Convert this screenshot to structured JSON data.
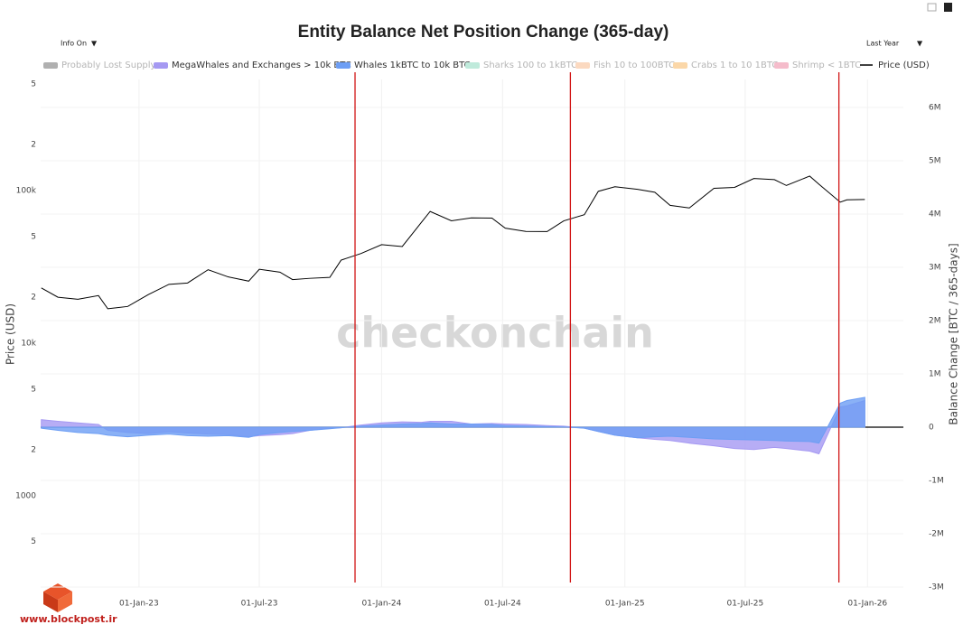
{
  "chart_data": {
    "type": "line",
    "title": "Entity Balance Net Position Change (365-day)",
    "y_label": "Price (USD)",
    "y2_label": "Balance Change [BTC / 365-days]",
    "x": [
      "2022-08-07",
      "2022-09-01",
      "2022-10-01",
      "2022-11-01",
      "2022-11-15",
      "2022-12-15",
      "2023-01-15",
      "2023-02-15",
      "2023-03-15",
      "2023-04-15",
      "2023-05-15",
      "2023-06-15",
      "2023-07-01",
      "2023-08-01",
      "2023-08-20",
      "2023-09-15",
      "2023-10-15",
      "2023-11-01",
      "2023-12-01",
      "2024-01-01",
      "2024-02-01",
      "2024-03-01",
      "2024-03-14",
      "2024-04-15",
      "2024-05-15",
      "2024-06-15",
      "2024-07-05",
      "2024-08-05",
      "2024-09-06",
      "2024-10-01",
      "2024-11-01",
      "2024-11-22",
      "2024-12-17",
      "2025-01-20",
      "2025-02-15",
      "2025-03-10",
      "2025-04-08",
      "2025-05-15",
      "2025-06-15",
      "2025-07-14",
      "2025-08-14",
      "2025-09-01",
      "2025-10-06",
      "2025-10-20",
      "2025-11-21",
      "2025-12-01",
      "2025-12-28"
    ],
    "series": [
      {
        "name": "Probably Lost Supply",
        "color": "#b0b0b0",
        "visible": false
      },
      {
        "name": "MegaWhales and Exchanges > 10k BTC",
        "color": "#a599f2",
        "axis": "y2",
        "style": "area",
        "values": [
          140000,
          110000,
          80000,
          50000,
          -60000,
          -100000,
          -120000,
          -90000,
          -110000,
          -130000,
          -140000,
          -180000,
          -160000,
          -140000,
          -120000,
          -60000,
          -20000,
          -10000,
          40000,
          80000,
          100000,
          90000,
          110000,
          110000,
          60000,
          70000,
          60000,
          50000,
          30000,
          20000,
          -20000,
          -80000,
          -150000,
          -200000,
          -230000,
          -250000,
          -300000,
          -350000,
          -400000,
          -420000,
          -380000,
          -400000,
          -450000,
          -500000,
          380000,
          400000,
          500000
        ]
      },
      {
        "name": "Whales 1kBTC to 10k BTC",
        "color": "#6d9ef4",
        "axis": "y2",
        "style": "area",
        "values": [
          -20000,
          -60000,
          -100000,
          -120000,
          -150000,
          -180000,
          -150000,
          -130000,
          -160000,
          -170000,
          -160000,
          -190000,
          -140000,
          -100000,
          -80000,
          -60000,
          -30000,
          -10000,
          20000,
          40000,
          60000,
          70000,
          80000,
          60000,
          60000,
          50000,
          30000,
          20000,
          10000,
          5000,
          -20000,
          -80000,
          -150000,
          -200000,
          -180000,
          -170000,
          -190000,
          -220000,
          -230000,
          -240000,
          -250000,
          -260000,
          -270000,
          -300000,
          450000,
          500000,
          560000
        ]
      },
      {
        "name": "Sharks 100 to 1kBTC",
        "color": "#bfeadb",
        "visible": false
      },
      {
        "name": "Fish 10 to 100BTC",
        "color": "#fbd9c0",
        "visible": false
      },
      {
        "name": "Crabs 1 to 10 1BTC",
        "color": "#fbd7a8",
        "visible": false
      },
      {
        "name": "Shrimp < 1BTC",
        "color": "#f5bccb",
        "visible": false
      },
      {
        "name": "Price (USD)",
        "color": "#000000",
        "axis": "y",
        "style": "line",
        "values": [
          23000,
          20000,
          19400,
          20500,
          16800,
          17400,
          20800,
          24300,
          24800,
          30300,
          27200,
          25500,
          30500,
          29200,
          26100,
          26600,
          27000,
          35000,
          38700,
          44200,
          43000,
          62000,
          73000,
          63400,
          66200,
          66000,
          56700,
          54000,
          53900,
          63300,
          69500,
          98900,
          106000,
          102000,
          97500,
          80000,
          77000,
          103500,
          105000,
          120000,
          118000,
          108000,
          124500,
          110000,
          84000,
          87000,
          87500
        ]
      }
    ],
    "xlim": [
      "2022-08-06",
      "2026-02-24"
    ],
    "xticks": [
      {
        "value": "2023-01-01",
        "label": "01-Jan-23"
      },
      {
        "value": "2023-07-01",
        "label": "01-Jul-23"
      },
      {
        "value": "2024-01-01",
        "label": "01-Jan-24"
      },
      {
        "value": "2024-07-01",
        "label": "01-Jul-24"
      },
      {
        "value": "2025-01-01",
        "label": "01-Jan-25"
      },
      {
        "value": "2025-07-01",
        "label": "01-Jul-25"
      },
      {
        "value": "2026-01-01",
        "label": "01-Jan-26"
      }
    ],
    "yscale": "log",
    "ylim": [
      252,
      535000
    ],
    "yticks": [
      {
        "value": 500,
        "label": "5"
      },
      1000,
      {
        "value": 2000,
        "label": "2"
      },
      {
        "value": 5000,
        "label": "5"
      },
      {
        "value": 10000,
        "label": "10k"
      },
      {
        "value": 20000,
        "label": "2"
      },
      {
        "value": 50000,
        "label": "5"
      },
      {
        "value": 100000,
        "label": "100k"
      },
      {
        "value": 200000,
        "label": "2"
      },
      {
        "value": 500000,
        "label": "5"
      }
    ],
    "y2lim": [
      -3000000,
      6525000
    ],
    "y2ticks": [
      {
        "value": -3000000,
        "label": "-3M"
      },
      {
        "value": -2000000,
        "label": "-2M"
      },
      {
        "value": -1000000,
        "label": "-1M"
      },
      0,
      {
        "value": 1000000,
        "label": "1M"
      },
      {
        "value": 2000000,
        "label": "2M"
      },
      {
        "value": 3000000,
        "label": "3M"
      },
      {
        "value": 4000000,
        "label": "4M"
      },
      {
        "value": 5000000,
        "label": "5M"
      },
      {
        "value": 6000000,
        "label": "6M"
      }
    ],
    "vlines": [
      "2023-11-22",
      "2024-10-11",
      "2025-11-19"
    ],
    "vline_color": "#d11414",
    "grid": true
  },
  "controls": {
    "info": "Info On",
    "range": "Last Year"
  },
  "watermark": "checkonchain",
  "source": "www.blockpost.ir"
}
